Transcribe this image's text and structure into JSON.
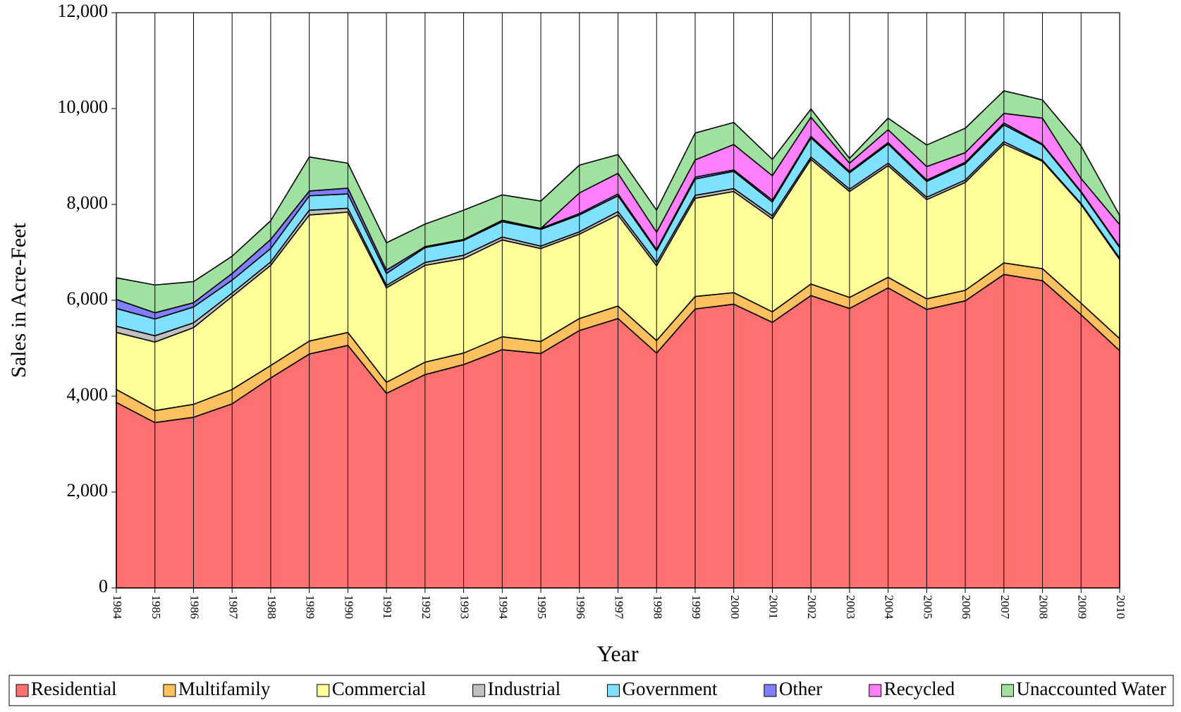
{
  "chart_data": {
    "type": "stacked_area",
    "x_label": "Year",
    "y_label": "Sales in Acre-Feet",
    "categories": [
      "1984",
      "1985",
      "1986",
      "1987",
      "1988",
      "1989",
      "1990",
      "1991",
      "1992",
      "1993",
      "1994",
      "1995",
      "1996",
      "1997",
      "1998",
      "1999",
      "2000",
      "2001",
      "2002",
      "2003",
      "2004",
      "2005",
      "2006",
      "2007",
      "2008",
      "2009",
      "2010"
    ],
    "series": [
      {
        "name": "Residential",
        "color": "#ff7070",
        "values": [
          3870,
          3450,
          3560,
          3840,
          4380,
          4880,
          5060,
          4060,
          4450,
          4660,
          4970,
          4890,
          5370,
          5620,
          4900,
          5820,
          5920,
          5540,
          6100,
          5830,
          6260,
          5810,
          5990,
          6540,
          6410,
          5700,
          4950
        ]
      },
      {
        "name": "Multifamily",
        "color": "#ffc060",
        "values": [
          270,
          250,
          270,
          300,
          260,
          270,
          270,
          230,
          260,
          240,
          270,
          250,
          250,
          260,
          260,
          260,
          240,
          220,
          240,
          230,
          220,
          220,
          220,
          240,
          250,
          240,
          250
        ]
      },
      {
        "name": "Commercial",
        "color": "#ffff99",
        "values": [
          1190,
          1430,
          1600,
          1940,
          2090,
          2630,
          2510,
          1970,
          2020,
          1970,
          2020,
          1940,
          1760,
          1900,
          1560,
          2050,
          2110,
          1940,
          2600,
          2210,
          2330,
          2070,
          2250,
          2480,
          2240,
          2060,
          1650
        ]
      },
      {
        "name": "Industrial",
        "color": "#c0c0c0",
        "values": [
          130,
          130,
          100,
          70,
          70,
          100,
          80,
          50,
          60,
          70,
          60,
          50,
          50,
          70,
          70,
          60,
          60,
          60,
          50,
          50,
          50,
          50,
          50,
          50,
          20,
          20,
          30
        ]
      },
      {
        "name": "Government",
        "color": "#80e0ff",
        "values": [
          370,
          350,
          330,
          270,
          280,
          300,
          300,
          250,
          310,
          310,
          320,
          350,
          350,
          330,
          240,
          340,
          360,
          290,
          400,
          340,
          400,
          330,
          340,
          350,
          320,
          230,
          220
        ]
      },
      {
        "name": "Other",
        "color": "#8080ff",
        "values": [
          190,
          130,
          90,
          140,
          190,
          100,
          120,
          70,
          20,
          20,
          30,
          20,
          30,
          40,
          30,
          40,
          30,
          40,
          30,
          30,
          30,
          30,
          30,
          40,
          20,
          20,
          20
        ]
      },
      {
        "name": "Recycled",
        "color": "#ff80ff",
        "values": [
          0,
          0,
          0,
          0,
          0,
          0,
          0,
          0,
          0,
          0,
          0,
          0,
          430,
          430,
          360,
          360,
          530,
          510,
          400,
          170,
          270,
          280,
          200,
          200,
          540,
          270,
          460
        ]
      },
      {
        "name": "Unaccounted Water",
        "color": "#a0e0a0",
        "values": [
          450,
          580,
          440,
          360,
          390,
          710,
          520,
          570,
          470,
          610,
          530,
          570,
          580,
          390,
          460,
          560,
          460,
          340,
          170,
          100,
          240,
          450,
          510,
          470,
          380,
          680,
          190
        ]
      }
    ],
    "ylim": [
      0,
      12000
    ],
    "yticks": [
      0,
      {
        "value": 2000,
        "label": "2,000"
      },
      {
        "value": 4000,
        "label": "4,000"
      },
      {
        "value": 6000,
        "label": "6,000"
      },
      {
        "value": 8000,
        "label": "8,000"
      },
      {
        "value": 10000,
        "label": "10,000"
      },
      {
        "value": 12000,
        "label": "12,000"
      }
    ],
    "grid": true,
    "legend": "bottom"
  }
}
